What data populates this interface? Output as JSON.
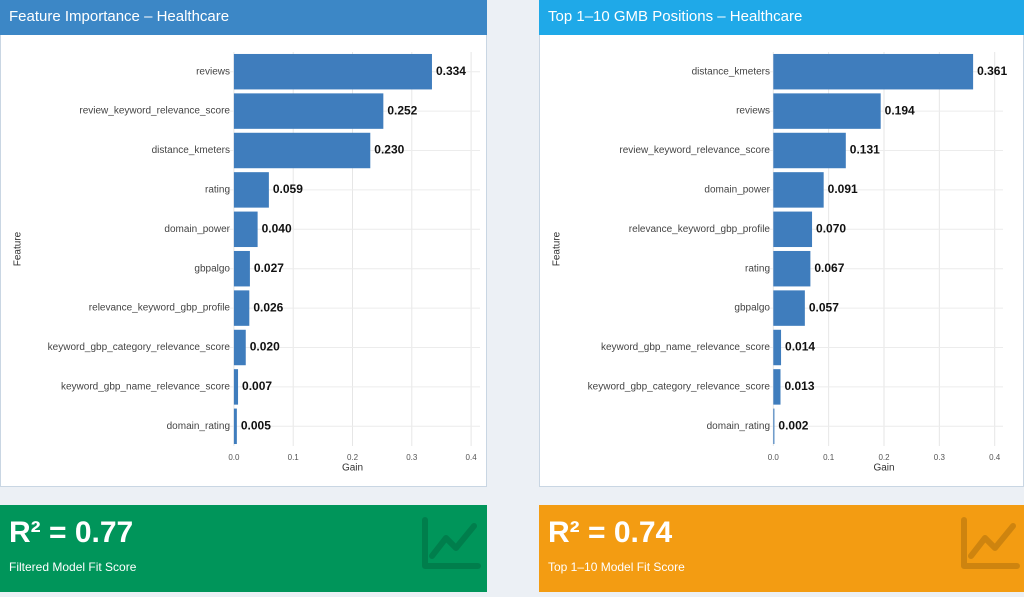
{
  "chart_data": [
    {
      "type": "barh",
      "title": "Feature Importance – Healthcare",
      "categories": [
        "reviews",
        "review_keyword_relevance_score",
        "distance_kmeters",
        "rating",
        "domain_power",
        "gbpalgo",
        "relevance_keyword_gbp_profile",
        "keyword_gbp_category_relevance_score",
        "keyword_gbp_name_relevance_score",
        "domain_rating"
      ],
      "values": [
        0.334,
        0.252,
        0.23,
        0.059,
        0.04,
        0.027,
        0.026,
        0.02,
        0.007,
        0.005
      ],
      "value_labels": [
        "0.334",
        "0.252",
        "0.230",
        "0.059",
        "0.040",
        "0.027",
        "0.026",
        "0.020",
        "0.007",
        "0.005"
      ],
      "color": "#3f7dbd",
      "header_color": "#3c87c6",
      "x_label": "Gain",
      "y_label": "Feature",
      "xlim": [
        -0.015,
        0.415
      ],
      "xticks": [
        {
          "value": 0,
          "label": "0.0"
        },
        {
          "value": 0.1,
          "label": "0.1"
        },
        {
          "value": 0.2,
          "label": "0.2"
        },
        {
          "value": 0.3,
          "label": "0.3"
        },
        {
          "value": 0.4,
          "label": "0.4"
        }
      ],
      "grid": true
    },
    {
      "type": "barh",
      "title": "Top 1–10 GMB Positions – Healthcare",
      "categories": [
        "distance_kmeters",
        "reviews",
        "review_keyword_relevance_score",
        "domain_power",
        "relevance_keyword_gbp_profile",
        "rating",
        "gbpalgo",
        "keyword_gbp_name_relevance_score",
        "keyword_gbp_category_relevance_score",
        "domain_rating"
      ],
      "values": [
        0.361,
        0.194,
        0.131,
        0.091,
        0.07,
        0.067,
        0.057,
        0.014,
        0.013,
        0.002
      ],
      "value_labels": [
        "0.361",
        "0.194",
        "0.131",
        "0.091",
        "0.070",
        "0.067",
        "0.057",
        "0.014",
        "0.013",
        "0.002"
      ],
      "color": "#3f7dbd",
      "header_color": "#1fa9e8",
      "x_label": "Gain",
      "y_label": "Feature",
      "xlim": [
        -0.015,
        0.415
      ],
      "xticks": [
        {
          "value": 0,
          "label": "0.0"
        },
        {
          "value": 0.1,
          "label": "0.1"
        },
        {
          "value": 0.2,
          "label": "0.2"
        },
        {
          "value": 0.3,
          "label": "0.3"
        },
        {
          "value": 0.4,
          "label": "0.4"
        }
      ],
      "grid": true
    }
  ],
  "value_boxes": [
    {
      "value": "R² = 0.77",
      "subtitle": "Filtered Model Fit Score",
      "color": "#00955a"
    },
    {
      "value": "R² = 0.74",
      "subtitle": "Top 1–10 Model Fit Score",
      "color": "#f39c12"
    }
  ]
}
